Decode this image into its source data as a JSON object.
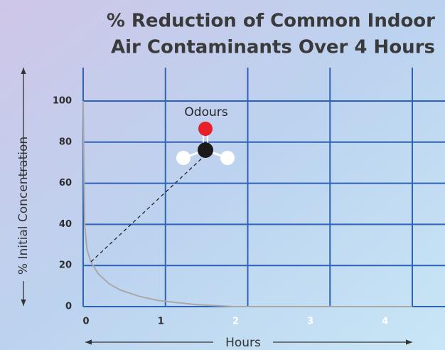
{
  "chart_data": {
    "type": "line",
    "title": [
      "% Reduction of Common Indoor",
      "Air Contaminants Over 4 Hours"
    ],
    "x_label": "Hours",
    "y_label": "% Initial Concentration",
    "annotation": "Odours",
    "x": [
      0,
      0.02,
      0.05,
      0.1,
      0.2,
      0.35,
      0.5,
      0.75,
      1,
      1.25,
      1.5,
      1.75,
      2,
      3,
      4.4
    ],
    "series": [
      {
        "name": "Odours",
        "color": "#a8a8a8",
        "values": [
          100,
          40,
          28,
          22,
          16,
          11,
          8,
          5,
          3,
          2,
          1,
          0.5,
          0,
          0,
          0
        ]
      }
    ],
    "xlim": [
      0,
      4.4
    ],
    "xticks": [
      0,
      1,
      2,
      3,
      4
    ],
    "ylim": [
      0,
      100
    ],
    "yticks": [
      0,
      20,
      40,
      60,
      80,
      100
    ],
    "grid": true
  }
}
